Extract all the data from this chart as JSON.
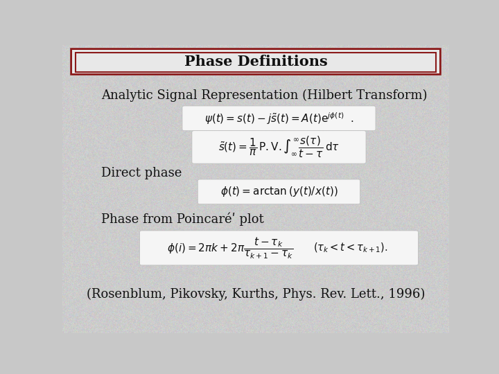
{
  "background_color": "#c8c8c8",
  "title_text": "Phase Definitions",
  "title_box_fill_top": "#f0f0f0",
  "title_box_fill_mid": "#e0e0e0",
  "title_box_border_outer": "#8b1a1a",
  "title_box_border_inner": "#8b1a1a",
  "title_fontsize": 15,
  "title_fontstyle": "bold",
  "text_color": "#111111",
  "formula_box_bg": "#f5f5f5",
  "heading1_text": "Analytic Signal Representation (Hilbert Transform)",
  "heading2_text": "Direct phase",
  "heading3_text": "Phase from Poincaréʹ plot",
  "citation_text": "(Rosenblum, Pikovsky, Kurths, Phys. Rev. Lett., 1996)",
  "formula1_text": "$\\psi(t) = s(t) - j\\tilde{s}(t) = A(t)\\mathrm{e}^{j\\phi(t)}$  .",
  "formula2_text": "$\\tilde{s}(t) = \\dfrac{1}{\\pi}\\,\\mathrm{P.V.}\\int_{\\infty}^{\\infty}\\dfrac{s(\\tau)}{t - \\tau}\\,\\mathrm{d}\\tau$",
  "formula3_text": "$\\phi(t) = \\arctan\\left(y(t)/x(t)\\right)$",
  "formula4_text": "$\\phi(i) = 2\\pi k + 2\\pi\\dfrac{t - \\tau_k}{\\tau_{k+1} - \\tau_k}$",
  "formula4b_text": "$(\\tau_k < t < \\tau_{k+1})$.",
  "heading_fontsize": 13,
  "formula_fontsize": 11,
  "citation_fontsize": 13
}
